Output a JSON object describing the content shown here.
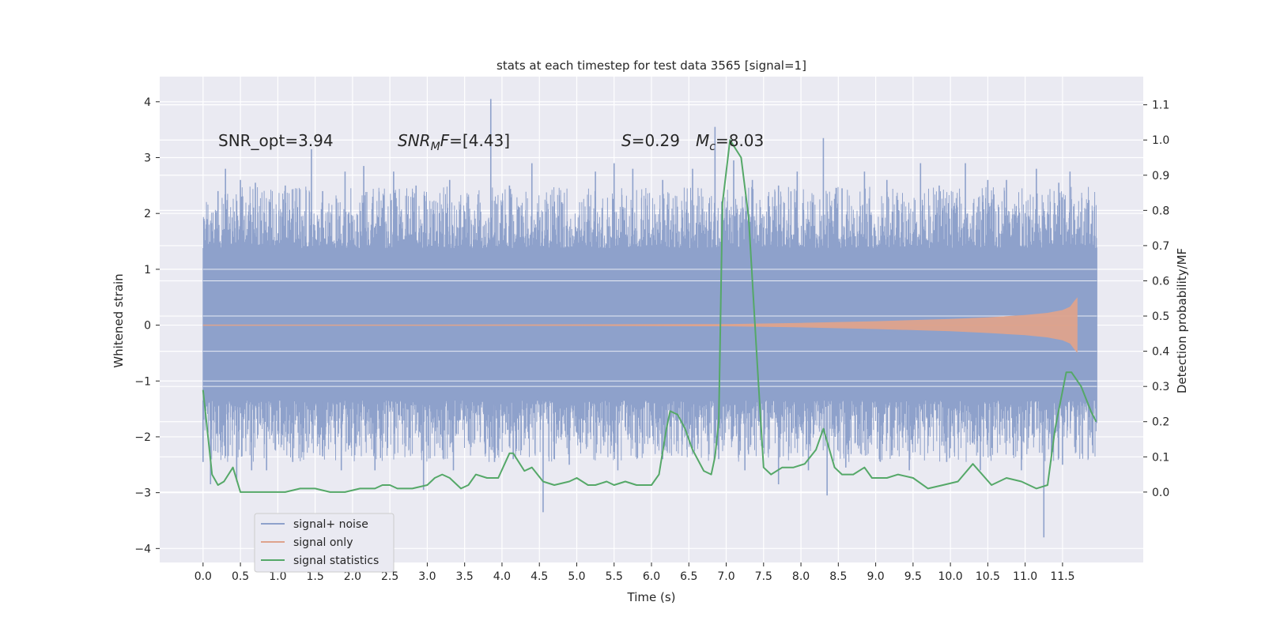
{
  "chart_data": {
    "type": "line",
    "title": "stats at each timestep for test data 3565 [signal=1]",
    "xlabel": "Time (s)",
    "ylabel": "Whitened strain",
    "y2label": "Detection probability/MF",
    "xlim": [
      -0.58,
      12.58
    ],
    "ylim": [
      -4.25,
      4.45
    ],
    "y2lim": [
      -0.2,
      1.18
    ],
    "grid": true,
    "legend_position": "lower-left",
    "x_ticks": [
      "0.0",
      "0.5",
      "1.0",
      "1.5",
      "2.0",
      "2.5",
      "3.0",
      "3.5",
      "4.0",
      "4.5",
      "5.0",
      "5.5",
      "6.0",
      "6.5",
      "7.0",
      "7.5",
      "8.0",
      "8.5",
      "9.0",
      "9.5",
      "10.0",
      "10.5",
      "11.0",
      "11.5"
    ],
    "y_ticks": [
      "4",
      "3",
      "2",
      "1",
      "0",
      "−1",
      "−2",
      "−3",
      "−4"
    ],
    "y2_ticks": [
      "1.1",
      "1.0",
      "0.9",
      "0.8",
      "0.7",
      "0.6",
      "0.5",
      "0.4",
      "0.3",
      "0.2",
      "0.1",
      "0.0"
    ],
    "annotations": {
      "snr_opt": "SNR_opt=3.94",
      "snr_mf_var": "SNR",
      "snr_mf_sub": "M",
      "snr_mf_var2": "F",
      "snr_mf_val": "=[4.43]",
      "s_var": "S",
      "s_val": "=0.29",
      "mc_var": "M",
      "mc_sub": "c",
      "mc_val": "=8.03"
    },
    "series": [
      {
        "name": "signal+ noise",
        "color": "#8ea1cb",
        "x_range": [
          0.0,
          11.96
        ],
        "core_band": [
          -1.35,
          1.38
        ],
        "upper_spikes": [
          [
            0.05,
            1.9
          ],
          [
            0.2,
            2.4
          ],
          [
            0.3,
            2.8
          ],
          [
            0.5,
            2.6
          ],
          [
            0.7,
            2.55
          ],
          [
            0.9,
            2.2
          ],
          [
            1.1,
            2.5
          ],
          [
            1.45,
            3.15
          ],
          [
            1.6,
            2.4
          ],
          [
            1.9,
            2.75
          ],
          [
            2.15,
            2.85
          ],
          [
            2.55,
            2.75
          ],
          [
            2.85,
            2.5
          ],
          [
            3.3,
            2.6
          ],
          [
            3.55,
            2.3
          ],
          [
            3.85,
            4.05
          ],
          [
            4.1,
            2.5
          ],
          [
            4.4,
            2.9
          ],
          [
            4.8,
            2.2
          ],
          [
            5.25,
            2.75
          ],
          [
            5.5,
            2.9
          ],
          [
            5.75,
            2.8
          ],
          [
            6.15,
            2.6
          ],
          [
            6.55,
            2.8
          ],
          [
            6.85,
            3.55
          ],
          [
            7.1,
            2.95
          ],
          [
            7.35,
            2.6
          ],
          [
            7.7,
            2.5
          ],
          [
            7.95,
            2.75
          ],
          [
            8.3,
            3.35
          ],
          [
            8.55,
            2.45
          ],
          [
            8.85,
            2.75
          ],
          [
            9.15,
            2.6
          ],
          [
            9.6,
            2.9
          ],
          [
            9.85,
            2.5
          ],
          [
            10.2,
            2.9
          ],
          [
            10.5,
            2.6
          ],
          [
            10.75,
            2.6
          ],
          [
            11.15,
            2.8
          ],
          [
            11.45,
            2.55
          ],
          [
            11.6,
            2.75
          ],
          [
            11.9,
            2.05
          ]
        ],
        "lower_spikes": [
          [
            0.0,
            -2.45
          ],
          [
            0.1,
            -2.85
          ],
          [
            0.45,
            -2.8
          ],
          [
            0.65,
            -2.6
          ],
          [
            0.85,
            -2.6
          ],
          [
            1.2,
            -2.45
          ],
          [
            1.6,
            -2.35
          ],
          [
            1.85,
            -2.6
          ],
          [
            2.3,
            -2.6
          ],
          [
            2.95,
            -2.95
          ],
          [
            3.35,
            -2.6
          ],
          [
            3.9,
            -2.45
          ],
          [
            4.15,
            -2.4
          ],
          [
            4.55,
            -3.35
          ],
          [
            4.9,
            -2.5
          ],
          [
            5.55,
            -2.6
          ],
          [
            6.15,
            -2.4
          ],
          [
            6.55,
            -2.2
          ],
          [
            6.9,
            -2.4
          ],
          [
            7.25,
            -2.6
          ],
          [
            7.7,
            -2.85
          ],
          [
            8.1,
            -2.6
          ],
          [
            8.35,
            -3.05
          ],
          [
            8.6,
            -2.55
          ],
          [
            9.05,
            -2.4
          ],
          [
            9.45,
            -2.6
          ],
          [
            9.95,
            -2.45
          ],
          [
            10.4,
            -2.6
          ],
          [
            10.95,
            -2.6
          ],
          [
            11.25,
            -3.8
          ],
          [
            11.5,
            -2.5
          ],
          [
            11.9,
            -2.15
          ]
        ]
      },
      {
        "name": "signal only",
        "color": "#dea38c",
        "x_range": [
          0.0,
          11.7
        ],
        "chirp_envelope": [
          [
            0.0,
            0.0
          ],
          [
            7.0,
            0.02
          ],
          [
            8.0,
            0.04
          ],
          [
            9.0,
            0.07
          ],
          [
            10.0,
            0.11
          ],
          [
            10.5,
            0.14
          ],
          [
            11.0,
            0.18
          ],
          [
            11.3,
            0.22
          ],
          [
            11.5,
            0.27
          ],
          [
            11.6,
            0.33
          ],
          [
            11.65,
            0.42
          ],
          [
            11.7,
            0.5
          ]
        ]
      },
      {
        "name": "signal statistics",
        "color": "#55a868",
        "axis": "right",
        "x": [
          0.0,
          0.12,
          0.2,
          0.28,
          0.4,
          0.5,
          0.7,
          0.9,
          1.1,
          1.3,
          1.5,
          1.7,
          1.9,
          2.1,
          2.3,
          2.4,
          2.5,
          2.6,
          2.8,
          3.0,
          3.1,
          3.2,
          3.3,
          3.45,
          3.55,
          3.65,
          3.8,
          3.95,
          4.1,
          4.15,
          4.3,
          4.4,
          4.55,
          4.7,
          4.9,
          5.0,
          5.15,
          5.25,
          5.4,
          5.5,
          5.65,
          5.8,
          6.0,
          6.1,
          6.2,
          6.25,
          6.35,
          6.45,
          6.55,
          6.7,
          6.8,
          6.85,
          6.9,
          6.95,
          7.05,
          7.2,
          7.3,
          7.42,
          7.5,
          7.6,
          7.75,
          7.9,
          8.05,
          8.2,
          8.3,
          8.45,
          8.55,
          8.7,
          8.85,
          8.95,
          9.15,
          9.3,
          9.5,
          9.7,
          9.9,
          10.1,
          10.3,
          10.55,
          10.75,
          10.95,
          11.15,
          11.3,
          11.4,
          11.55,
          11.62,
          11.75,
          11.88,
          11.95
        ],
        "y": [
          0.29,
          0.05,
          0.02,
          0.03,
          0.07,
          0.0,
          0.0,
          0.0,
          0.0,
          0.01,
          0.01,
          0.0,
          0.0,
          0.01,
          0.01,
          0.02,
          0.02,
          0.01,
          0.01,
          0.02,
          0.04,
          0.05,
          0.04,
          0.01,
          0.02,
          0.05,
          0.04,
          0.04,
          0.11,
          0.11,
          0.06,
          0.07,
          0.03,
          0.02,
          0.03,
          0.04,
          0.02,
          0.02,
          0.03,
          0.02,
          0.03,
          0.02,
          0.02,
          0.05,
          0.18,
          0.23,
          0.22,
          0.18,
          0.12,
          0.06,
          0.05,
          0.1,
          0.2,
          0.82,
          1.0,
          0.95,
          0.78,
          0.35,
          0.07,
          0.05,
          0.07,
          0.07,
          0.08,
          0.12,
          0.18,
          0.07,
          0.05,
          0.05,
          0.07,
          0.04,
          0.04,
          0.05,
          0.04,
          0.01,
          0.02,
          0.03,
          0.08,
          0.02,
          0.04,
          0.03,
          0.01,
          0.02,
          0.18,
          0.34,
          0.34,
          0.3,
          0.23,
          0.2
        ]
      }
    ]
  }
}
